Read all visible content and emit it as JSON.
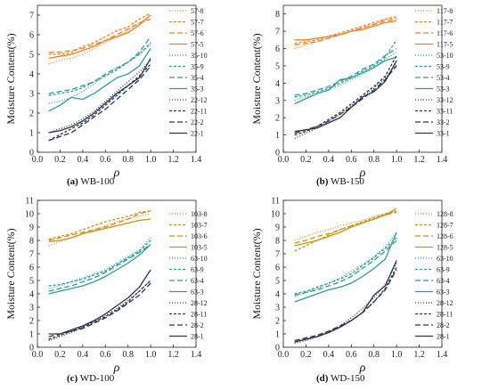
{
  "figure": {
    "colors": {
      "orange": "#f07f22",
      "teal": "#2a9d97",
      "navy": "#27374d",
      "gold": "#cc9116"
    }
  },
  "chart_data": [
    {
      "type": "line",
      "caption_letter": "(a)",
      "caption_text": "WB-100",
      "xlabel": "ρ",
      "ylabel": "Moisture Content(%)",
      "xlim": [
        0,
        1.4
      ],
      "ylim": [
        0,
        7.5
      ],
      "xticks": [
        "0.0",
        "0.2",
        "0.4",
        "0.6",
        "0.8",
        "1.0",
        "1.2",
        "1.4"
      ],
      "yticks": [
        "0",
        "1",
        "2",
        "3",
        "4",
        "5",
        "6",
        "7"
      ],
      "x": [
        0.1,
        0.2,
        0.3,
        0.4,
        0.5,
        0.6,
        0.7,
        0.8,
        0.9,
        1.0
      ],
      "legend_position": "right",
      "series": [
        {
          "name": "57-8",
          "color": "#f07f22",
          "dash": "1,2",
          "values": [
            4.5,
            4.7,
            4.8,
            5.0,
            5.3,
            5.6,
            5.9,
            6.2,
            6.6,
            7.0
          ]
        },
        {
          "name": "57-7",
          "color": "#f07f22",
          "dash": "3,2",
          "values": [
            5.0,
            5.0,
            5.1,
            5.4,
            5.6,
            5.9,
            6.2,
            6.4,
            6.8,
            7.1
          ]
        },
        {
          "name": "57-6",
          "color": "#f07f22",
          "dash": "6,3",
          "values": [
            5.1,
            5.1,
            5.2,
            5.3,
            5.5,
            5.7,
            6.0,
            6.3,
            6.6,
            6.8
          ]
        },
        {
          "name": "57-5",
          "color": "#f07f22",
          "dash": "",
          "values": [
            4.8,
            4.9,
            5.0,
            5.2,
            5.4,
            5.7,
            5.9,
            6.1,
            6.5,
            7.0
          ]
        },
        {
          "name": "35-10",
          "color": "#2a9d97",
          "dash": "1,2",
          "values": [
            2.5,
            2.6,
            2.8,
            3.1,
            3.5,
            3.9,
            4.3,
            4.6,
            5.0,
            5.5
          ]
        },
        {
          "name": "35-9",
          "color": "#2a9d97",
          "dash": "3,2",
          "values": [
            2.9,
            3.0,
            3.1,
            3.3,
            3.6,
            3.9,
            4.2,
            4.6,
            5.0,
            5.6
          ]
        },
        {
          "name": "35-4",
          "color": "#2a9d97",
          "dash": "6,3",
          "values": [
            3.0,
            3.1,
            3.2,
            3.4,
            3.6,
            4.0,
            4.3,
            4.6,
            5.1,
            5.9
          ]
        },
        {
          "name": "35-3",
          "color": "#2a9d97",
          "dash": "",
          "values": [
            2.1,
            2.4,
            2.8,
            2.7,
            3.0,
            3.4,
            3.8,
            4.0,
            4.4,
            5.3
          ]
        },
        {
          "name": "22-12",
          "color": "#27374d",
          "dash": "1,2",
          "values": [
            1.0,
            1.2,
            1.4,
            1.7,
            2.1,
            2.6,
            3.1,
            3.6,
            4.1,
            4.7
          ]
        },
        {
          "name": "22-11",
          "color": "#27374d",
          "dash": "3,2",
          "values": [
            0.6,
            0.9,
            1.2,
            1.5,
            1.9,
            2.4,
            2.9,
            3.4,
            3.9,
            4.5
          ]
        },
        {
          "name": "22-2",
          "color": "#27374d",
          "dash": "6,3",
          "values": [
            0.6,
            0.8,
            1.0,
            1.4,
            1.8,
            2.2,
            2.7,
            3.2,
            3.7,
            4.4
          ]
        },
        {
          "name": "22-1",
          "color": "#27374d",
          "dash": "",
          "values": [
            1.0,
            1.1,
            1.3,
            1.6,
            2.0,
            2.5,
            3.0,
            3.4,
            3.8,
            4.8
          ]
        }
      ]
    },
    {
      "type": "line",
      "caption_letter": "(b)",
      "caption_text": "WB-150",
      "xlabel": "ρ",
      "ylabel": "Moisture Content(%)",
      "xlim": [
        0,
        1.4
      ],
      "ylim": [
        0,
        8.5
      ],
      "xticks": [
        "0.0",
        "0.2",
        "0.4",
        "0.6",
        "0.8",
        "1.0",
        "1.2",
        "1.4"
      ],
      "yticks": [
        "0",
        "1",
        "2",
        "3",
        "4",
        "5",
        "6",
        "7",
        "8"
      ],
      "x": [
        0.1,
        0.2,
        0.3,
        0.4,
        0.5,
        0.6,
        0.7,
        0.8,
        0.9,
        1.0
      ],
      "legend_position": "right",
      "series": [
        {
          "name": "117-8",
          "color": "#f07f22",
          "dash": "1,2",
          "values": [
            6.0,
            6.2,
            6.4,
            6.6,
            6.8,
            7.0,
            7.2,
            7.4,
            7.7,
            7.9
          ]
        },
        {
          "name": "117-7",
          "color": "#f07f22",
          "dash": "3,2",
          "values": [
            6.3,
            6.4,
            6.5,
            6.7,
            6.9,
            7.1,
            7.3,
            7.5,
            7.7,
            7.8
          ]
        },
        {
          "name": "117-6",
          "color": "#f07f22",
          "dash": "6,3",
          "values": [
            6.2,
            6.3,
            6.4,
            6.6,
            6.8,
            7.0,
            7.2,
            7.4,
            7.6,
            7.7
          ]
        },
        {
          "name": "117-5",
          "color": "#f07f22",
          "dash": "",
          "values": [
            6.5,
            6.5,
            6.6,
            6.7,
            6.8,
            7.0,
            7.1,
            7.3,
            7.5,
            7.6
          ]
        },
        {
          "name": "53-10",
          "color": "#2a9d97",
          "dash": "1,2",
          "values": [
            3.0,
            3.2,
            3.4,
            3.6,
            3.9,
            4.2,
            4.5,
            4.9,
            5.4,
            5.8
          ]
        },
        {
          "name": "53-9",
          "color": "#2a9d97",
          "dash": "3,2",
          "values": [
            3.2,
            3.3,
            3.5,
            3.7,
            4.0,
            4.3,
            4.7,
            5.0,
            5.5,
            6.5
          ]
        },
        {
          "name": "53-4",
          "color": "#2a9d97",
          "dash": "6,3",
          "values": [
            3.3,
            3.4,
            3.6,
            3.8,
            4.1,
            4.4,
            4.8,
            5.1,
            5.6,
            6.0
          ]
        },
        {
          "name": "53-3",
          "color": "#2a9d97",
          "dash": "",
          "values": [
            2.8,
            3.1,
            3.4,
            3.6,
            4.2,
            4.3,
            4.6,
            4.9,
            5.3,
            5.5
          ]
        },
        {
          "name": "33-12",
          "color": "#27374d",
          "dash": "1,2",
          "values": [
            0.8,
            1.1,
            1.4,
            1.8,
            2.2,
            2.7,
            3.2,
            3.7,
            4.3,
            5.1
          ]
        },
        {
          "name": "33-11",
          "color": "#27374d",
          "dash": "3,2",
          "values": [
            1.0,
            1.2,
            1.5,
            1.9,
            2.3,
            2.8,
            3.3,
            3.8,
            4.4,
            5.6
          ]
        },
        {
          "name": "33-2",
          "color": "#27374d",
          "dash": "6,3",
          "values": [
            1.1,
            1.3,
            1.5,
            1.8,
            2.2,
            2.6,
            3.1,
            3.6,
            4.2,
            5.0
          ]
        },
        {
          "name": "33-1",
          "color": "#27374d",
          "dash": "",
          "values": [
            1.2,
            1.3,
            1.4,
            1.7,
            2.0,
            2.6,
            3.2,
            3.5,
            4.1,
            5.3
          ]
        }
      ]
    },
    {
      "type": "line",
      "caption_letter": "(c)",
      "caption_text": "WD-100",
      "xlabel": "ρ",
      "ylabel": "Moisture Content(%)",
      "xlim": [
        0,
        1.4
      ],
      "ylim": [
        0,
        11
      ],
      "xticks": [
        "0.0",
        "0.2",
        "0.4",
        "0.6",
        "0.8",
        "1.0",
        "1.2",
        "1.4"
      ],
      "yticks": [
        "0",
        "1",
        "2",
        "3",
        "4",
        "5",
        "6",
        "7",
        "8",
        "9",
        "10",
        "11"
      ],
      "x": [
        0.1,
        0.2,
        0.3,
        0.4,
        0.5,
        0.6,
        0.7,
        0.8,
        0.9,
        1.0
      ],
      "legend_position": "right",
      "series": [
        {
          "name": "103-8",
          "color": "#cc9116",
          "dash": "1,2",
          "values": [
            7.6,
            7.9,
            8.2,
            8.5,
            8.8,
            9.1,
            9.4,
            9.6,
            9.8,
            10.0
          ]
        },
        {
          "name": "103-7",
          "color": "#cc9116",
          "dash": "3,2",
          "values": [
            8.1,
            8.3,
            8.5,
            8.8,
            9.1,
            9.4,
            9.6,
            9.8,
            10.1,
            10.2
          ]
        },
        {
          "name": "103-6",
          "color": "#cc9116",
          "dash": "6,3",
          "values": [
            8.0,
            8.2,
            8.4,
            8.6,
            8.8,
            9.0,
            9.3,
            9.6,
            10.0,
            10.2
          ]
        },
        {
          "name": "103-5",
          "color": "#cc9116",
          "dash": "",
          "values": [
            7.9,
            8.0,
            8.2,
            8.5,
            8.7,
            8.9,
            9.1,
            9.3,
            9.5,
            9.6
          ]
        },
        {
          "name": "63-10",
          "color": "#2a9d97",
          "dash": "1,2",
          "values": [
            4.4,
            4.6,
            4.9,
            5.2,
            5.5,
            5.8,
            6.3,
            6.8,
            7.3,
            8.2
          ]
        },
        {
          "name": "63-9",
          "color": "#2a9d97",
          "dash": "3,2",
          "values": [
            4.6,
            4.7,
            4.9,
            5.1,
            5.4,
            5.7,
            6.2,
            6.7,
            7.2,
            8.0
          ]
        },
        {
          "name": "63-4",
          "color": "#2a9d97",
          "dash": "6,3",
          "values": [
            4.2,
            4.4,
            4.6,
            4.9,
            5.2,
            5.6,
            6.1,
            6.6,
            7.1,
            7.7
          ]
        },
        {
          "name": "63-3",
          "color": "#2a9d97",
          "dash": "",
          "values": [
            4.0,
            4.2,
            4.4,
            4.6,
            4.9,
            5.3,
            5.8,
            6.3,
            6.9,
            7.7
          ]
        },
        {
          "name": "28-12",
          "color": "#27374d",
          "dash": "1,2",
          "values": [
            0.5,
            0.8,
            1.1,
            1.5,
            1.9,
            2.4,
            2.9,
            3.5,
            4.2,
            5.0
          ]
        },
        {
          "name": "28-11",
          "color": "#27374d",
          "dash": "3,2",
          "values": [
            0.6,
            0.9,
            1.2,
            1.5,
            1.9,
            2.3,
            2.8,
            3.4,
            4.2,
            5.0
          ]
        },
        {
          "name": "28-2",
          "color": "#27374d",
          "dash": "6,3",
          "values": [
            0.8,
            1.0,
            1.2,
            1.4,
            1.8,
            2.2,
            2.7,
            3.3,
            3.9,
            4.8
          ]
        },
        {
          "name": "28-1",
          "color": "#27374d",
          "dash": "",
          "values": [
            1.0,
            1.0,
            1.3,
            1.6,
            2.0,
            2.5,
            3.1,
            3.7,
            4.5,
            5.8
          ]
        }
      ]
    },
    {
      "type": "line",
      "caption_letter": "(d)",
      "caption_text": "WD-150",
      "xlabel": "ρ",
      "ylabel": "Moisture Content(%)",
      "xlim": [
        0,
        1.4
      ],
      "ylim": [
        0,
        11
      ],
      "xticks": [
        "0.0",
        "0.2",
        "0.4",
        "0.6",
        "0.8",
        "1.0",
        "1.2",
        "1.4"
      ],
      "yticks": [
        "0",
        "1",
        "2",
        "3",
        "4",
        "5",
        "6",
        "7",
        "8",
        "9",
        "10",
        "11"
      ],
      "x": [
        0.1,
        0.2,
        0.3,
        0.4,
        0.5,
        0.6,
        0.7,
        0.8,
        0.9,
        1.0
      ],
      "legend_position": "right",
      "series": [
        {
          "name": "128-8",
          "color": "#cc9116",
          "dash": "1,2",
          "values": [
            8.0,
            8.3,
            8.6,
            8.8,
            9.1,
            9.3,
            9.5,
            9.8,
            10.0,
            10.2
          ]
        },
        {
          "name": "128-7",
          "color": "#cc9116",
          "dash": "3,2",
          "values": [
            7.2,
            7.6,
            8.0,
            8.4,
            8.8,
            9.1,
            9.4,
            9.7,
            10.0,
            10.2
          ]
        },
        {
          "name": "128-6",
          "color": "#cc9116",
          "dash": "6,3",
          "values": [
            7.8,
            8.0,
            8.3,
            8.5,
            8.8,
            9.1,
            9.3,
            9.6,
            9.9,
            10.1
          ]
        },
        {
          "name": "128-5",
          "color": "#cc9116",
          "dash": "",
          "values": [
            7.6,
            7.8,
            8.0,
            8.3,
            8.6,
            9.0,
            9.3,
            9.6,
            9.9,
            10.4
          ]
        },
        {
          "name": "63-10",
          "color": "#2a9d97",
          "dash": "1,2",
          "values": [
            3.8,
            4.1,
            4.4,
            4.8,
            5.2,
            5.7,
            6.2,
            6.8,
            7.5,
            8.6
          ]
        },
        {
          "name": "63-9",
          "color": "#2a9d97",
          "dash": "3,2",
          "values": [
            4.0,
            4.2,
            4.5,
            4.8,
            5.1,
            5.5,
            6.1,
            6.7,
            7.4,
            8.2
          ]
        },
        {
          "name": "63-4",
          "color": "#2a9d97",
          "dash": "6,3",
          "values": [
            3.9,
            4.1,
            4.3,
            4.6,
            4.9,
            5.3,
            5.9,
            6.5,
            7.2,
            8.0
          ]
        },
        {
          "name": "63-3",
          "color": "#2a9d97",
          "dash": "",
          "values": [
            3.4,
            3.7,
            4.0,
            4.3,
            4.5,
            4.8,
            5.3,
            5.9,
            6.6,
            8.6
          ]
        },
        {
          "name": "28-12",
          "color": "#27374d",
          "dash": "1,2",
          "values": [
            0.3,
            0.5,
            0.8,
            1.2,
            1.6,
            2.2,
            2.9,
            3.7,
            4.7,
            6.3
          ]
        },
        {
          "name": "28-11",
          "color": "#27374d",
          "dash": "3,2",
          "values": [
            0.4,
            0.6,
            0.8,
            1.1,
            1.5,
            2.0,
            2.6,
            3.4,
            4.4,
            6.0
          ]
        },
        {
          "name": "28-2",
          "color": "#27374d",
          "dash": "6,3",
          "values": [
            0.5,
            0.7,
            0.9,
            1.2,
            1.6,
            2.0,
            2.6,
            3.4,
            4.3,
            5.8
          ]
        },
        {
          "name": "28-1",
          "color": "#27374d",
          "dash": "",
          "values": [
            0.4,
            0.6,
            0.8,
            1.1,
            1.5,
            2.0,
            2.6,
            3.9,
            4.6,
            6.5
          ]
        }
      ]
    }
  ]
}
